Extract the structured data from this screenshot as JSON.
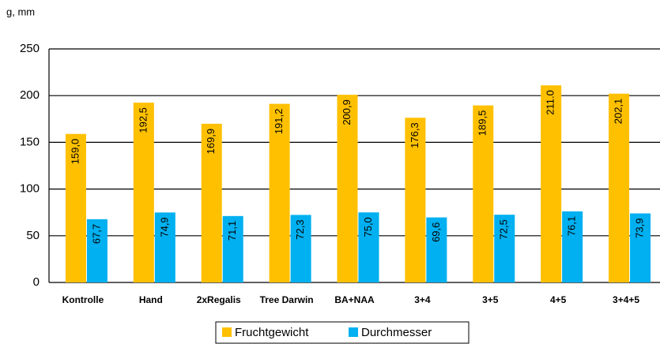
{
  "chart_data": {
    "type": "bar",
    "y_label": "g, mm",
    "categories": [
      "Kontrolle",
      "Hand",
      "2xRegalis",
      "Tree Darwin",
      "BA+NAA",
      "3+4",
      "3+5",
      "4+5",
      "3+4+5"
    ],
    "series": [
      {
        "name": "Fruchtgewicht",
        "color": "#FFC000",
        "values": [
          159.0,
          192.5,
          169.9,
          191.2,
          200.9,
          176.3,
          189.5,
          211.0,
          202.1
        ],
        "value_labels": [
          "159,0",
          "192,5",
          "169,9",
          "191,2",
          "200,9",
          "176,3",
          "189,5",
          "211.0",
          "202,1"
        ]
      },
      {
        "name": "Durchmesser",
        "color": "#00B0F0",
        "values": [
          67.7,
          74.9,
          71.1,
          72.3,
          75.0,
          69.6,
          72.5,
          76.1,
          73.9
        ],
        "value_labels": [
          "67,7",
          "74,9",
          "71,1",
          "72,3",
          "75,0",
          "69,6",
          "72,5",
          "76,1",
          "73,9"
        ]
      }
    ],
    "ylim": [
      0,
      250
    ],
    "yticks": [
      0,
      50,
      100,
      150,
      200,
      250
    ],
    "grid": true
  }
}
